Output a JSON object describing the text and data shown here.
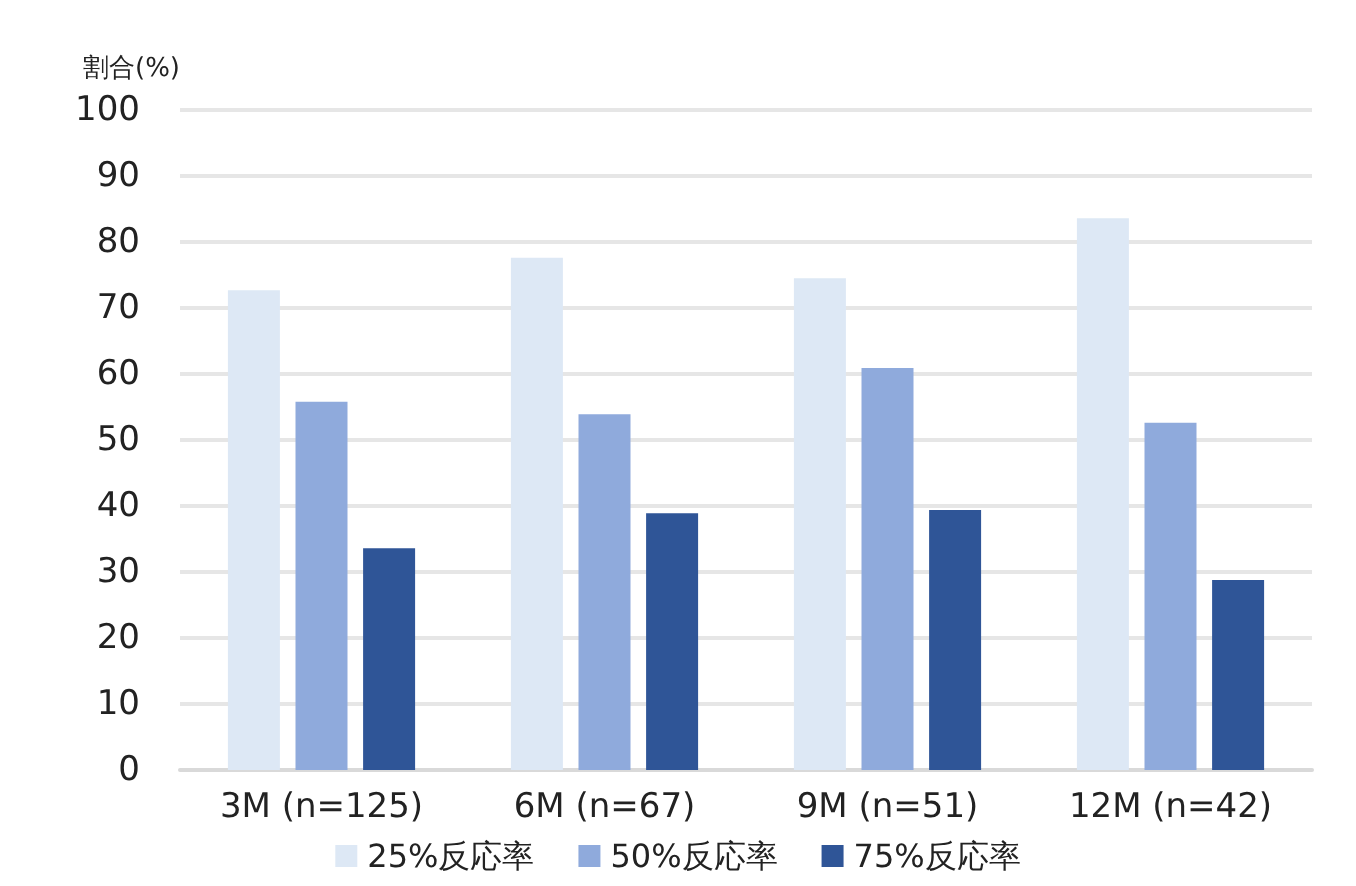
{
  "chart_data": {
    "type": "bar",
    "ylabel": "割合(%)",
    "categories": [
      "3M (n=125)",
      "6M (n=67)",
      "9M (n=51)",
      "12M (n=42)"
    ],
    "series": [
      {
        "name": "25%反応率",
        "color": "#dde8f5",
        "values": [
          72.7,
          77.6,
          74.5,
          83.6
        ]
      },
      {
        "name": "50%反応率",
        "color": "#8faadc",
        "values": [
          55.8,
          53.9,
          60.9,
          52.6
        ]
      },
      {
        "name": "75%反応率",
        "color": "#2f5597",
        "values": [
          33.6,
          38.9,
          39.4,
          28.8
        ]
      }
    ],
    "ylim": [
      0,
      100
    ],
    "yticks": [
      0,
      10,
      20,
      30,
      40,
      50,
      60,
      70,
      80,
      90,
      100
    ],
    "grid": "y",
    "legend": "bottom"
  }
}
